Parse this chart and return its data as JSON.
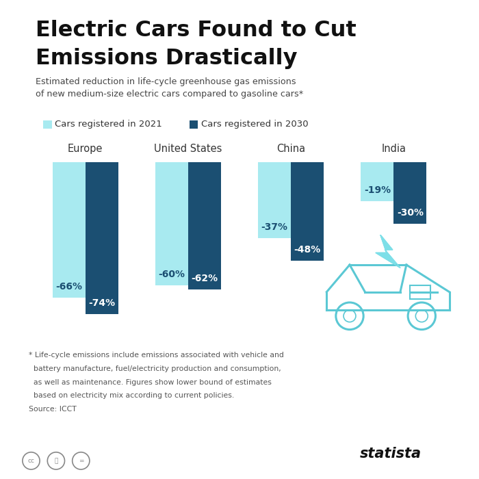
{
  "title_line1": "Electric Cars Found to Cut",
  "title_line2": "Emissions Drastically",
  "subtitle": "Estimated reduction in life-cycle greenhouse gas emissions\nof new medium-size electric cars compared to gasoline cars*",
  "legend_2021": "Cars registered in 2021",
  "legend_2030": "Cars registered in 2030",
  "regions": [
    "Europe",
    "United States",
    "China",
    "India"
  ],
  "values_2021": [
    66,
    60,
    37,
    19
  ],
  "values_2030": [
    74,
    62,
    48,
    30
  ],
  "labels_2021": [
    "-66%",
    "-60%",
    "-37%",
    "-19%"
  ],
  "labels_2030": [
    "-74%",
    "-62%",
    "-48%",
    "-30%"
  ],
  "color_2021": "#a8eaf0",
  "color_2030": "#1b4f72",
  "bar_width": 0.32,
  "footnote_line1": "* Life-cycle emissions include emissions associated with vehicle and",
  "footnote_line2": "  battery manufacture, fuel/electricity production and consumption,",
  "footnote_line3": "  as well as maintenance. Figures show lower bound of estimates",
  "footnote_line4": "  based on electricity mix according to current policies.",
  "footnote_line5": "Source: ICCT",
  "bg_color": "#ffffff",
  "title_color": "#111111",
  "subtitle_color": "#444444",
  "accent_bar_color": "#2980b9",
  "car_color": "#5bc8d4",
  "lightning_color": "#7ddfe8"
}
